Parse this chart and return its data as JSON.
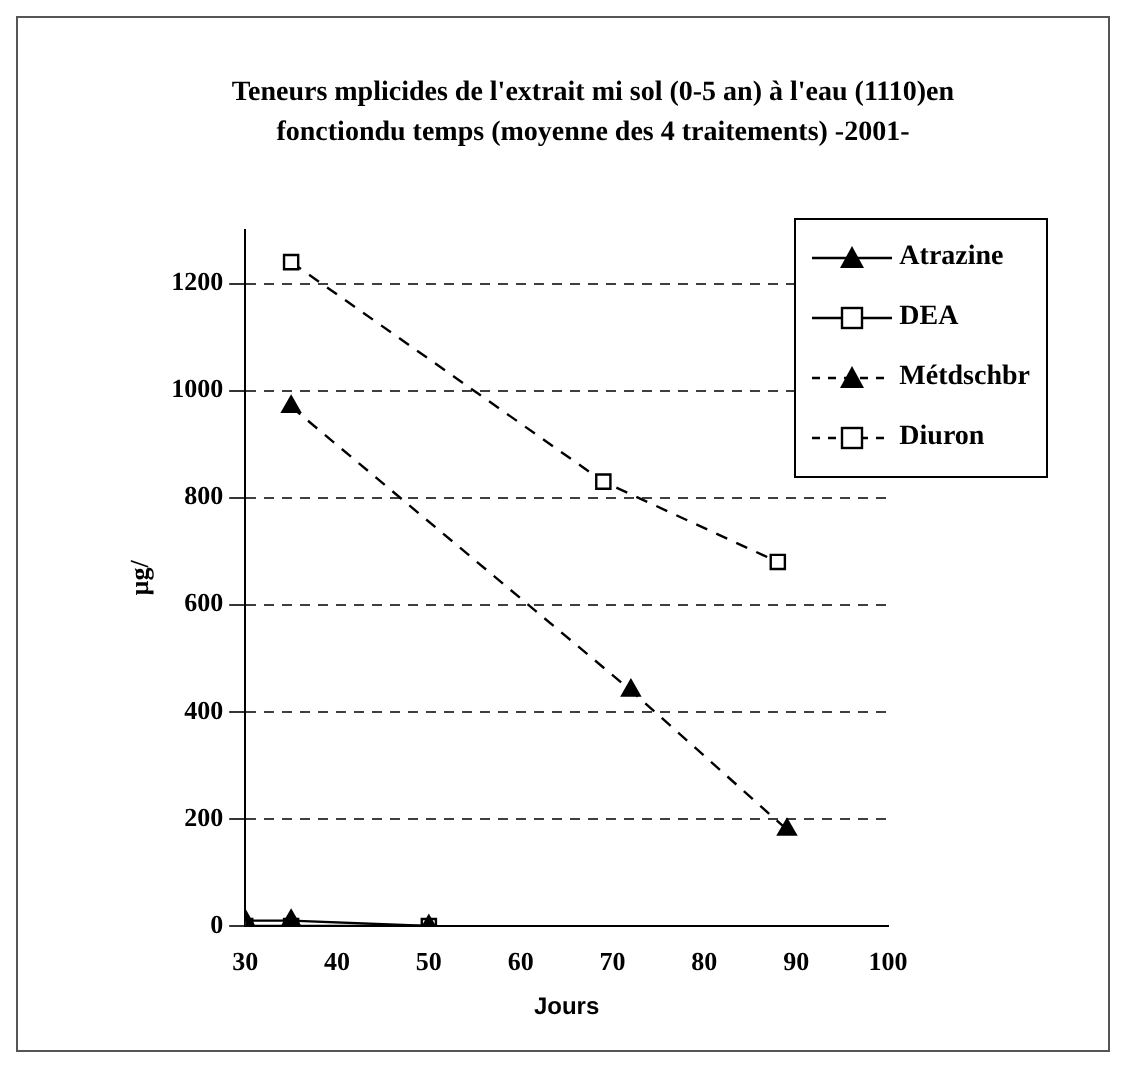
{
  "chart_data": {
    "type": "line",
    "title": "Teneurs mplicides de l'extrait mi sol (0-5 an) à l'eau (1110)en fonctiondu temps (moyenne des 4 traitements) -2001-",
    "xlabel": "Jours",
    "ylabel": "µg/",
    "series": [
      {
        "name": "Atrazine",
        "color": "#000000",
        "x": [
          30,
          35,
          50
        ],
        "values": [
          10,
          10,
          0
        ],
        "marker": "triangle",
        "line_style": "solid"
      },
      {
        "name": "DEA",
        "color": "#000000",
        "x": [
          30,
          35,
          50
        ],
        "values": [
          0,
          0,
          0
        ],
        "marker": "square",
        "line_style": "solid"
      },
      {
        "name": "Métdschbr",
        "color": "#000000",
        "x": [
          35,
          72,
          89
        ],
        "values": [
          970,
          440,
          180
        ],
        "marker": "triangle",
        "line_style": "dashed"
      },
      {
        "name": "Diuron",
        "color": "#000000",
        "x": [
          35,
          69,
          88
        ],
        "values": [
          1240,
          830,
          680
        ],
        "marker": "square",
        "line_style": "dashed"
      }
    ],
    "xlim": [
      30,
      100
    ],
    "xticks": [
      30,
      40,
      50,
      60,
      70,
      80,
      90,
      100
    ],
    "ylim": [
      0,
      1300
    ],
    "yticks": [
      0,
      200,
      400,
      600,
      800,
      1000,
      1200
    ],
    "grid": "y",
    "legend": "top right"
  }
}
